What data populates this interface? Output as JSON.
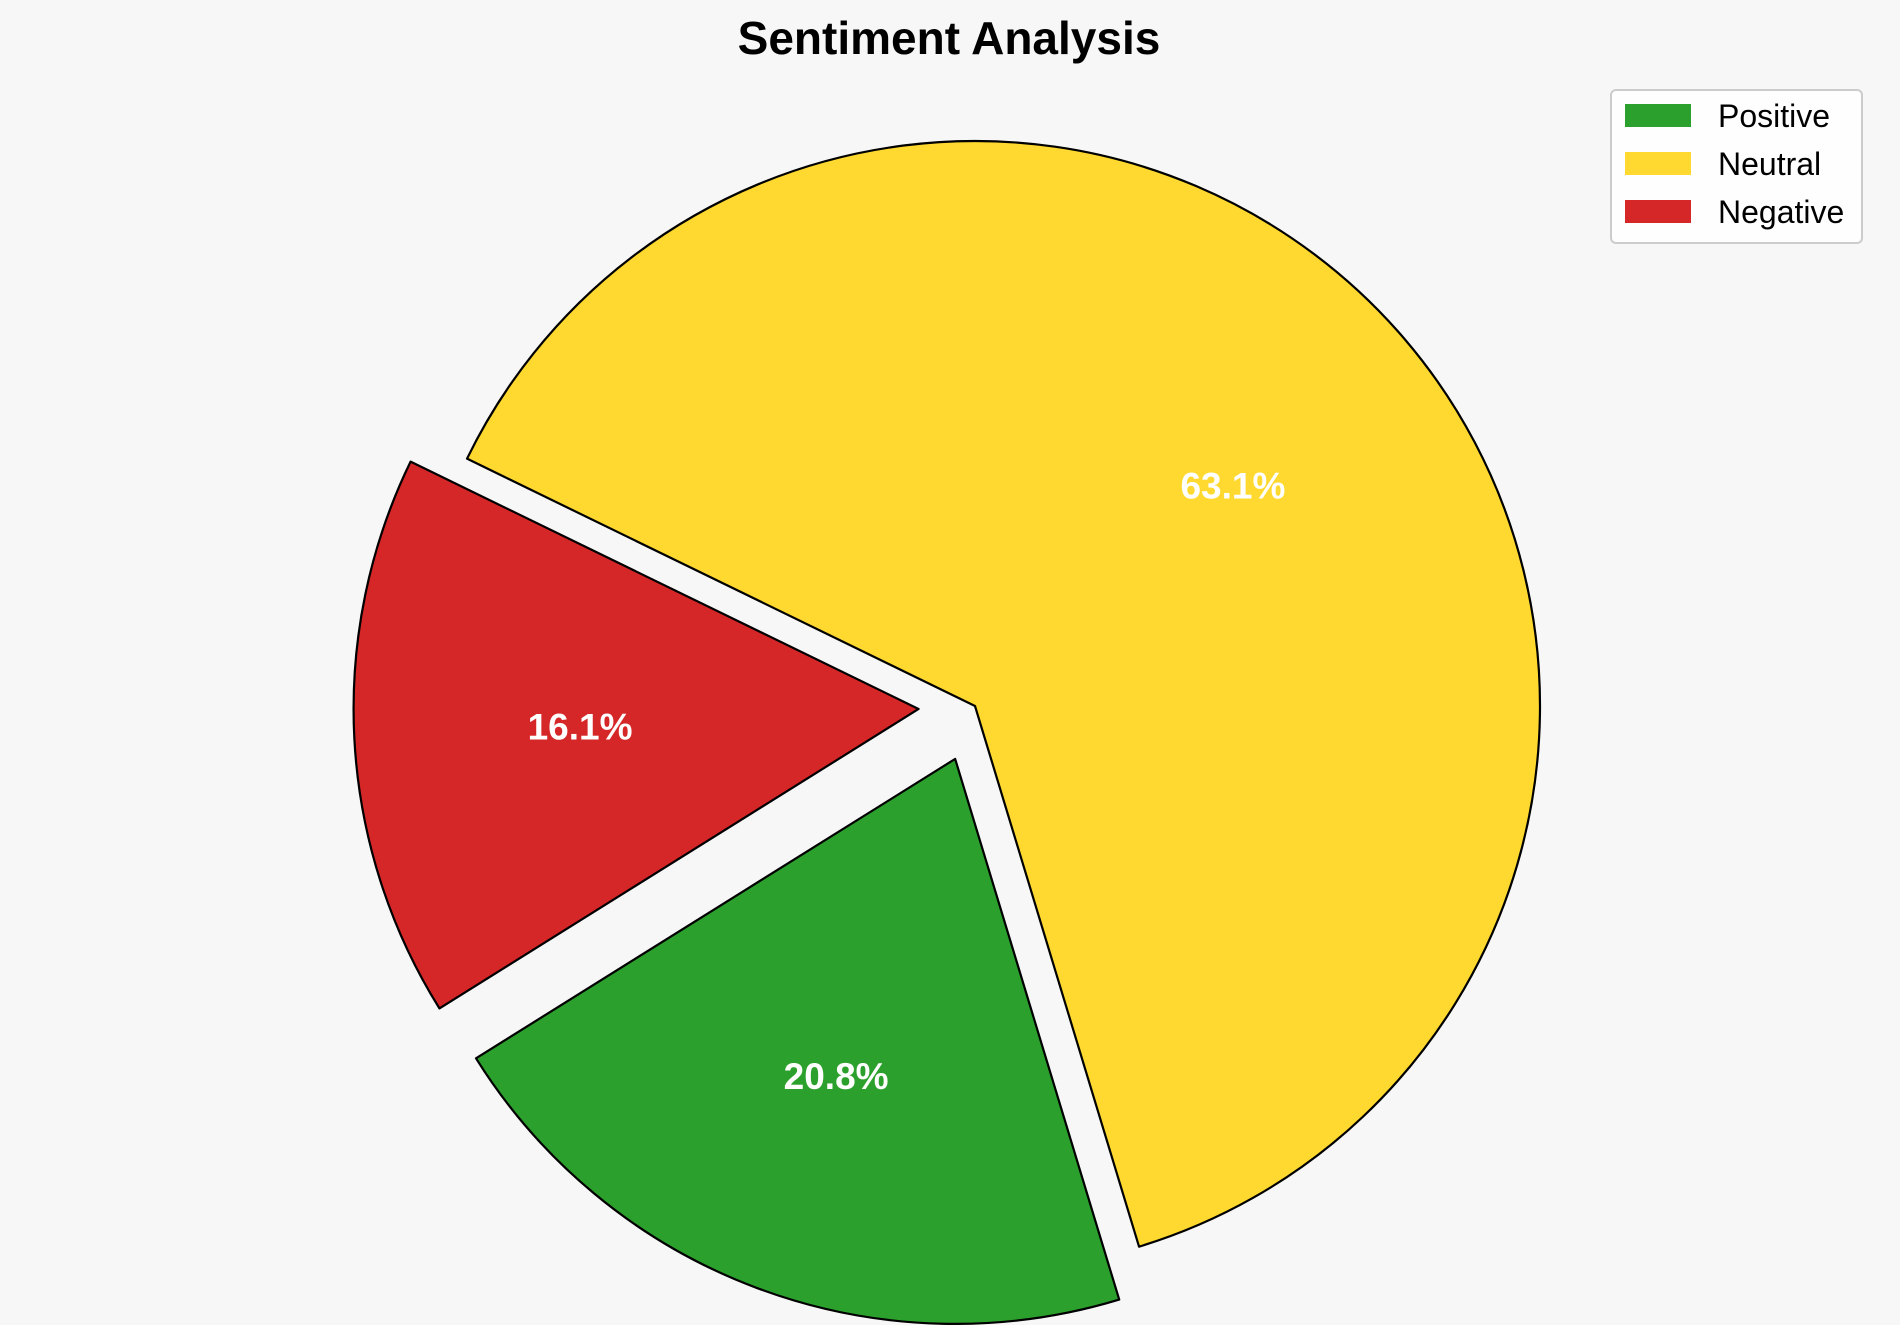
{
  "chart_data": {
    "type": "pie",
    "title": "Sentiment Analysis",
    "legend_position": "top-right",
    "slices": [
      {
        "name": "Positive",
        "value": 20.8,
        "label": "20.8%",
        "color": "#2ca02c",
        "exploded": true
      },
      {
        "name": "Neutral",
        "value": 63.1,
        "label": "63.1%",
        "color": "#ffd92f",
        "exploded": false
      },
      {
        "name": "Negative",
        "value": 16.1,
        "label": "16.1%",
        "color": "#d62728",
        "exploded": true
      }
    ]
  }
}
